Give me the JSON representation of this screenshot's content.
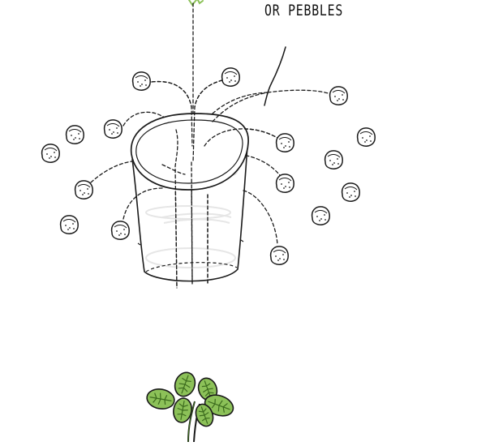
{
  "caption": {
    "text": "OR PEBBLES"
  },
  "colors": {
    "ink": "#1a1a1a",
    "leaf": "#8cc158",
    "leaf_dark": "#3c6b1e",
    "cup_faint": "#e6e6e6"
  },
  "icons": {
    "pebble": "pebble-icon",
    "plant": "clover-plant-icon",
    "cup": "plastic-cup-icon"
  },
  "pebble_count": 17
}
